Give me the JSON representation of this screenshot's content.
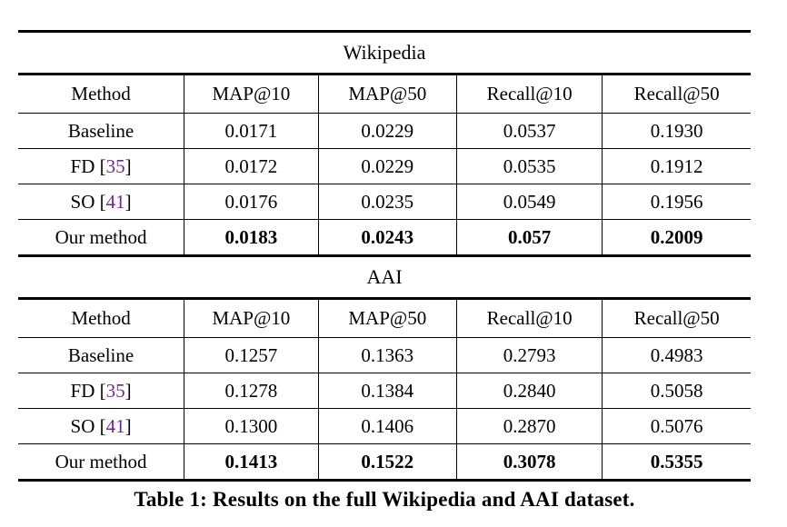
{
  "colors": {
    "background": "#ffffff",
    "text": "#000000",
    "rule": "#000000",
    "citation": "#71278e"
  },
  "caption": "Table 1: Results on the full Wikipedia and AAI dataset.",
  "tables": [
    {
      "title": "Wikipedia",
      "headers": [
        "Method",
        "MAP@10",
        "MAP@50",
        "Recall@10",
        "Recall@50"
      ],
      "rows": [
        {
          "pre": "Baseline",
          "values": [
            "0.0171",
            "0.0229",
            "0.0537",
            "0.1930"
          ],
          "bold": false
        },
        {
          "pre": "FD [",
          "cite": "35",
          "post": "]",
          "values": [
            "0.0172",
            "0.0229",
            "0.0535",
            "0.1912"
          ],
          "bold": false
        },
        {
          "pre": "SO [",
          "cite": "41",
          "post": "]",
          "values": [
            "0.0176",
            "0.0235",
            "0.0549",
            "0.1956"
          ],
          "bold": false
        },
        {
          "pre": "Our method",
          "values": [
            "0.0183",
            "0.0243",
            "0.057",
            "0.2009"
          ],
          "bold": true
        }
      ]
    },
    {
      "title": "AAI",
      "headers": [
        "Method",
        "MAP@10",
        "MAP@50",
        "Recall@10",
        "Recall@50"
      ],
      "rows": [
        {
          "pre": "Baseline",
          "values": [
            "0.1257",
            "0.1363",
            "0.2793",
            "0.4983"
          ],
          "bold": false
        },
        {
          "pre": "FD [",
          "cite": "35",
          "post": "]",
          "values": [
            "0.1278",
            "0.1384",
            "0.2840",
            "0.5058"
          ],
          "bold": false
        },
        {
          "pre": "SO [",
          "cite": "41",
          "post": "]",
          "values": [
            "0.1300",
            "0.1406",
            "0.2870",
            "0.5076"
          ],
          "bold": false
        },
        {
          "pre": "Our method",
          "values": [
            "0.1413",
            "0.1522",
            "0.3078",
            "0.5355"
          ],
          "bold": true
        }
      ]
    }
  ]
}
